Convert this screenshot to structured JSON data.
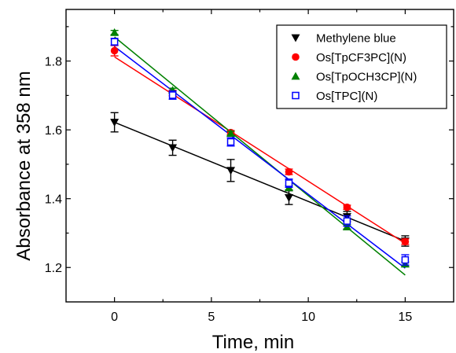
{
  "chart_data": {
    "type": "scatter",
    "title": "",
    "xlabel": "Time, min",
    "ylabel": "Absorbance at 358 nm",
    "xlim": [
      -2.5,
      17.5
    ],
    "ylim": [
      1.1,
      1.95
    ],
    "x_ticks": [
      0,
      5,
      10,
      15
    ],
    "y_ticks": [
      1.2,
      1.4,
      1.6,
      1.8
    ],
    "x_tick_labels": [
      "0",
      "5",
      "10",
      "15"
    ],
    "y_tick_labels": [
      "1.2",
      "1.4",
      "1.6",
      "1.8"
    ],
    "grid": false,
    "legend_position": "top-right",
    "series": [
      {
        "name": "Methylene blue",
        "marker": "triangle-down",
        "color": "#000000",
        "x": [
          0,
          3,
          6,
          9,
          12,
          15
        ],
        "y": [
          1.622,
          1.548,
          1.482,
          1.403,
          1.348,
          1.277
        ],
        "err": [
          0.028,
          0.022,
          0.032,
          0.02,
          0.015,
          0.015
        ],
        "fit": [
          1.622,
          1.277
        ]
      },
      {
        "name": "Os[TpCF3PC](N)",
        "marker": "circle",
        "color": "#ff0000",
        "x": [
          0,
          3,
          6,
          9,
          12,
          15
        ],
        "y": [
          1.83,
          1.707,
          1.592,
          1.478,
          1.375,
          1.275
        ],
        "err": [
          0.015,
          0.008,
          0.006,
          0.008,
          0.006,
          0.008
        ],
        "fit": [
          1.812,
          1.27
        ]
      },
      {
        "name": "Os[TpOCH3CP](N)",
        "marker": "triangle-up",
        "color": "#008000",
        "x": [
          0,
          3,
          6,
          9,
          12,
          15
        ],
        "y": [
          1.883,
          1.715,
          1.59,
          1.432,
          1.318,
          1.21
        ],
        "err": [
          0.006,
          0.006,
          0.006,
          0.006,
          0.006,
          0.006
        ],
        "fit": [
          1.87,
          1.178
        ]
      },
      {
        "name": "Os[TPC](N)",
        "marker": "square-open",
        "color": "#0000ff",
        "x": [
          0,
          3,
          6,
          9,
          12,
          15
        ],
        "y": [
          1.856,
          1.701,
          1.565,
          1.445,
          1.335,
          1.222
        ],
        "err": [
          0.01,
          0.012,
          0.012,
          0.012,
          0.015,
          0.015
        ],
        "fit": [
          1.842,
          1.198
        ]
      }
    ]
  }
}
